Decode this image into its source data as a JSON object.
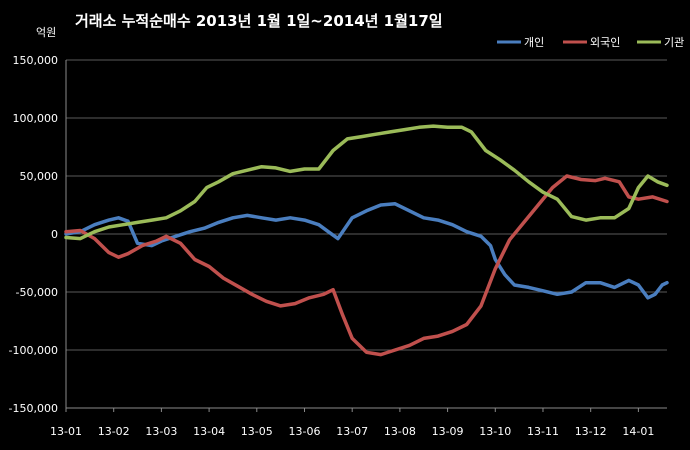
{
  "chart_data": {
    "type": "line",
    "title": "거래소 누적순매수 2013년 1월 1일~2014년 1월17일",
    "ylabel": "억원",
    "ylim": [
      -150000,
      150000
    ],
    "yticks": [
      -150000,
      -100000,
      -50000,
      0,
      50000,
      100000,
      150000
    ],
    "ytick_labels": [
      "-150,000",
      "-100,000",
      "-50,000",
      "0",
      "50,000",
      "100,000",
      "150,000"
    ],
    "xlim": [
      0,
      12.6
    ],
    "xticks": [
      0,
      1,
      2,
      3,
      4,
      5,
      6,
      7,
      8,
      9,
      10,
      11,
      12
    ],
    "xtick_labels": [
      "13-01",
      "13-02",
      "13-03",
      "13-04",
      "13-05",
      "13-06",
      "13-07",
      "13-08",
      "13-09",
      "13-10",
      "13-11",
      "13-12",
      "14-01"
    ],
    "grid": true,
    "legend": "top-right",
    "background": "#000000",
    "series": [
      {
        "name": "개인",
        "color": "#4a7ebf",
        "points": [
          [
            0,
            0
          ],
          [
            0.3,
            2000
          ],
          [
            0.6,
            8000
          ],
          [
            0.9,
            12000
          ],
          [
            1.1,
            14000
          ],
          [
            1.3,
            11000
          ],
          [
            1.5,
            -8000
          ],
          [
            1.8,
            -10000
          ],
          [
            2.0,
            -6000
          ],
          [
            2.3,
            -2000
          ],
          [
            2.6,
            2000
          ],
          [
            2.9,
            5000
          ],
          [
            3.2,
            10000
          ],
          [
            3.5,
            14000
          ],
          [
            3.8,
            16000
          ],
          [
            4.1,
            14000
          ],
          [
            4.4,
            12000
          ],
          [
            4.7,
            14000
          ],
          [
            5.0,
            12000
          ],
          [
            5.3,
            8000
          ],
          [
            5.5,
            2000
          ],
          [
            5.7,
            -4000
          ],
          [
            6.0,
            14000
          ],
          [
            6.3,
            20000
          ],
          [
            6.6,
            25000
          ],
          [
            6.9,
            26000
          ],
          [
            7.2,
            20000
          ],
          [
            7.5,
            14000
          ],
          [
            7.8,
            12000
          ],
          [
            8.1,
            8000
          ],
          [
            8.4,
            2000
          ],
          [
            8.7,
            -2000
          ],
          [
            8.9,
            -10000
          ],
          [
            9.0,
            -22000
          ],
          [
            9.2,
            -35000
          ],
          [
            9.4,
            -44000
          ],
          [
            9.7,
            -46000
          ],
          [
            10.0,
            -49000
          ],
          [
            10.3,
            -52000
          ],
          [
            10.6,
            -50000
          ],
          [
            10.9,
            -42000
          ],
          [
            11.2,
            -42000
          ],
          [
            11.5,
            -46000
          ],
          [
            11.8,
            -40000
          ],
          [
            12.0,
            -44000
          ],
          [
            12.2,
            -55000
          ],
          [
            12.35,
            -52000
          ],
          [
            12.5,
            -44000
          ],
          [
            12.6,
            -42000
          ]
        ]
      },
      {
        "name": "외국인",
        "color": "#c0504d",
        "points": [
          [
            0,
            2000
          ],
          [
            0.3,
            3000
          ],
          [
            0.6,
            -4000
          ],
          [
            0.9,
            -16000
          ],
          [
            1.1,
            -20000
          ],
          [
            1.3,
            -17000
          ],
          [
            1.6,
            -10000
          ],
          [
            1.9,
            -6000
          ],
          [
            2.1,
            -2000
          ],
          [
            2.4,
            -8000
          ],
          [
            2.7,
            -22000
          ],
          [
            3.0,
            -28000
          ],
          [
            3.3,
            -38000
          ],
          [
            3.6,
            -45000
          ],
          [
            3.9,
            -52000
          ],
          [
            4.2,
            -58000
          ],
          [
            4.5,
            -62000
          ],
          [
            4.8,
            -60000
          ],
          [
            5.1,
            -55000
          ],
          [
            5.4,
            -52000
          ],
          [
            5.6,
            -48000
          ],
          [
            5.8,
            -70000
          ],
          [
            6.0,
            -90000
          ],
          [
            6.3,
            -102000
          ],
          [
            6.6,
            -104000
          ],
          [
            6.9,
            -100000
          ],
          [
            7.2,
            -96000
          ],
          [
            7.5,
            -90000
          ],
          [
            7.8,
            -88000
          ],
          [
            8.1,
            -84000
          ],
          [
            8.4,
            -78000
          ],
          [
            8.7,
            -62000
          ],
          [
            9.0,
            -30000
          ],
          [
            9.3,
            -5000
          ],
          [
            9.6,
            10000
          ],
          [
            9.9,
            25000
          ],
          [
            10.2,
            40000
          ],
          [
            10.5,
            50000
          ],
          [
            10.8,
            47000
          ],
          [
            11.1,
            46000
          ],
          [
            11.3,
            48000
          ],
          [
            11.6,
            45000
          ],
          [
            11.8,
            32000
          ],
          [
            12.0,
            30000
          ],
          [
            12.3,
            32000
          ],
          [
            12.6,
            28000
          ]
        ]
      },
      {
        "name": "기관",
        "color": "#9bbb59",
        "points": [
          [
            0,
            -3000
          ],
          [
            0.3,
            -4000
          ],
          [
            0.6,
            2000
          ],
          [
            0.9,
            6000
          ],
          [
            1.2,
            8000
          ],
          [
            1.5,
            10000
          ],
          [
            1.8,
            12000
          ],
          [
            2.1,
            14000
          ],
          [
            2.4,
            20000
          ],
          [
            2.7,
            28000
          ],
          [
            2.95,
            40000
          ],
          [
            3.2,
            45000
          ],
          [
            3.5,
            52000
          ],
          [
            3.8,
            55000
          ],
          [
            4.1,
            58000
          ],
          [
            4.4,
            57000
          ],
          [
            4.7,
            54000
          ],
          [
            5.0,
            56000
          ],
          [
            5.3,
            56000
          ],
          [
            5.6,
            72000
          ],
          [
            5.9,
            82000
          ],
          [
            6.2,
            84000
          ],
          [
            6.5,
            86000
          ],
          [
            6.8,
            88000
          ],
          [
            7.1,
            90000
          ],
          [
            7.4,
            92000
          ],
          [
            7.7,
            93000
          ],
          [
            8.0,
            92000
          ],
          [
            8.3,
            92000
          ],
          [
            8.5,
            88000
          ],
          [
            8.8,
            72000
          ],
          [
            9.1,
            64000
          ],
          [
            9.4,
            55000
          ],
          [
            9.7,
            45000
          ],
          [
            10.0,
            36000
          ],
          [
            10.3,
            30000
          ],
          [
            10.6,
            15000
          ],
          [
            10.9,
            12000
          ],
          [
            11.2,
            14000
          ],
          [
            11.5,
            14000
          ],
          [
            11.8,
            22000
          ],
          [
            12.0,
            40000
          ],
          [
            12.2,
            50000
          ],
          [
            12.4,
            45000
          ],
          [
            12.6,
            42000
          ]
        ]
      }
    ]
  }
}
